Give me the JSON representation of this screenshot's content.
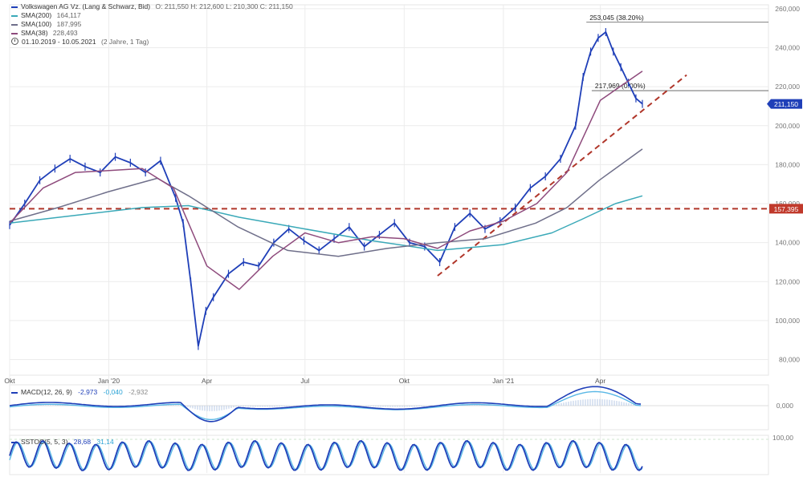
{
  "legend": {
    "title": "Volkswagen AG Vz. (Lang & Schwarz, Bid)",
    "ohlc": "O: 211,550  H: 212,600  L: 210,300  C: 211,150",
    "sma200_label": "SMA(200)",
    "sma200_value": "164,117",
    "sma100_label": "SMA(100)",
    "sma100_value": "187,995",
    "sma38_label": "SMA(38)",
    "sma38_value": "228,493",
    "range": "01.10.2019 - 10.05.2021",
    "range_note": "(2 Jahre, 1 Tag)"
  },
  "macd": {
    "label": "MACD(12, 26, 9)",
    "v1": "-2,973",
    "v2": "-0,040",
    "v3": "-2,932",
    "zero_label": "0,000"
  },
  "sstoc": {
    "label": "SSTOC(5, 5, 3)",
    "v1": "28,68",
    "v2": "31,14",
    "top_label": "100,00"
  },
  "colors": {
    "price": "#1f3fb8",
    "sma200": "#3aa9b8",
    "sma100": "#6f6f8a",
    "sma38": "#8e4a7c",
    "trend": "#b0362a",
    "last_price_bg": "#1f3fb8",
    "level_bg": "#c0392b",
    "macd": "#1f3fb8",
    "signal": "#5ab8e6",
    "stoch_k": "#1f3fb8",
    "stoch_d": "#5ab8e6"
  },
  "chart_data": {
    "type": "line",
    "y_axis": {
      "ticks": [
        80,
        100,
        120,
        140,
        160,
        180,
        200,
        220,
        240,
        260
      ],
      "tick_labels": [
        "80,000",
        "100,000",
        "120,000",
        "140,000",
        "160,000",
        "180,000",
        "200,000",
        "220,000",
        "240,000",
        "260,000"
      ],
      "ylim": [
        72,
        262
      ]
    },
    "x_axis": {
      "range": [
        "2019-10-01",
        "2021-05-10"
      ],
      "ticks": [
        {
          "date": "2019-10-01",
          "label": "Okt"
        },
        {
          "date": "2020-01-01",
          "label": "Jan '20"
        },
        {
          "date": "2020-04-01",
          "label": "Apr"
        },
        {
          "date": "2020-07-01",
          "label": "Jul"
        },
        {
          "date": "2020-10-01",
          "label": "Okt"
        },
        {
          "date": "2021-01-01",
          "label": "Jan '21"
        },
        {
          "date": "2021-04-01",
          "label": "Apr"
        }
      ]
    },
    "series": [
      {
        "name": "Volkswagen AG Vz.",
        "points": [
          [
            "2019-10-01",
            149
          ],
          [
            "2019-10-15",
            160
          ],
          [
            "2019-10-29",
            172
          ],
          [
            "2019-11-12",
            178
          ],
          [
            "2019-11-26",
            183
          ],
          [
            "2019-12-10",
            179
          ],
          [
            "2019-12-24",
            176
          ],
          [
            "2020-01-07",
            184
          ],
          [
            "2020-01-21",
            181
          ],
          [
            "2020-02-04",
            176
          ],
          [
            "2020-02-18",
            182
          ],
          [
            "2020-03-03",
            163
          ],
          [
            "2020-03-10",
            150
          ],
          [
            "2020-03-17",
            120
          ],
          [
            "2020-03-24",
            87
          ],
          [
            "2020-03-31",
            105
          ],
          [
            "2020-04-07",
            112
          ],
          [
            "2020-04-21",
            124
          ],
          [
            "2020-05-05",
            130
          ],
          [
            "2020-05-19",
            128
          ],
          [
            "2020-06-02",
            140
          ],
          [
            "2020-06-16",
            147
          ],
          [
            "2020-06-30",
            141
          ],
          [
            "2020-07-14",
            136
          ],
          [
            "2020-07-28",
            142
          ],
          [
            "2020-08-11",
            148
          ],
          [
            "2020-08-25",
            138
          ],
          [
            "2020-09-08",
            144
          ],
          [
            "2020-09-22",
            150
          ],
          [
            "2020-10-06",
            140
          ],
          [
            "2020-10-20",
            138
          ],
          [
            "2020-11-03",
            130
          ],
          [
            "2020-11-17",
            148
          ],
          [
            "2020-12-01",
            155
          ],
          [
            "2020-12-15",
            147
          ],
          [
            "2020-12-29",
            151
          ],
          [
            "2021-01-12",
            158
          ],
          [
            "2021-01-26",
            168
          ],
          [
            "2021-02-09",
            174
          ],
          [
            "2021-02-23",
            183
          ],
          [
            "2021-03-09",
            200
          ],
          [
            "2021-03-16",
            225
          ],
          [
            "2021-03-23",
            238
          ],
          [
            "2021-03-30",
            245
          ],
          [
            "2021-04-06",
            248
          ],
          [
            "2021-04-13",
            238
          ],
          [
            "2021-04-20",
            230
          ],
          [
            "2021-04-27",
            222
          ],
          [
            "2021-05-04",
            214
          ],
          [
            "2021-05-10",
            211.15
          ]
        ]
      },
      {
        "name": "SMA(200)",
        "points": [
          [
            "2019-10-01",
            150
          ],
          [
            "2019-12-01",
            154
          ],
          [
            "2020-02-01",
            158
          ],
          [
            "2020-03-15",
            159
          ],
          [
            "2020-05-01",
            153
          ],
          [
            "2020-07-01",
            147
          ],
          [
            "2020-09-01",
            141
          ],
          [
            "2020-11-01",
            136
          ],
          [
            "2021-01-01",
            139
          ],
          [
            "2021-02-15",
            145
          ],
          [
            "2021-03-15",
            152
          ],
          [
            "2021-04-15",
            160
          ],
          [
            "2021-05-10",
            164
          ]
        ]
      },
      {
        "name": "SMA(100)",
        "points": [
          [
            "2019-10-01",
            151
          ],
          [
            "2019-11-15",
            158
          ],
          [
            "2019-12-31",
            166
          ],
          [
            "2020-02-15",
            173
          ],
          [
            "2020-03-15",
            164
          ],
          [
            "2020-04-30",
            148
          ],
          [
            "2020-06-15",
            136
          ],
          [
            "2020-08-01",
            133
          ],
          [
            "2020-09-15",
            137
          ],
          [
            "2020-11-01",
            140
          ],
          [
            "2020-12-15",
            142
          ],
          [
            "2021-01-31",
            150
          ],
          [
            "2021-03-01",
            158
          ],
          [
            "2021-03-31",
            172
          ],
          [
            "2021-05-10",
            188
          ]
        ]
      },
      {
        "name": "SMA(38)",
        "points": [
          [
            "2019-10-01",
            150
          ],
          [
            "2019-11-01",
            168
          ],
          [
            "2019-12-01",
            176
          ],
          [
            "2020-01-01",
            177
          ],
          [
            "2020-02-01",
            178
          ],
          [
            "2020-03-01",
            168
          ],
          [
            "2020-04-01",
            128
          ],
          [
            "2020-05-01",
            116
          ],
          [
            "2020-06-01",
            133
          ],
          [
            "2020-07-01",
            145
          ],
          [
            "2020-08-01",
            140
          ],
          [
            "2020-09-01",
            143
          ],
          [
            "2020-10-01",
            142
          ],
          [
            "2020-11-01",
            137
          ],
          [
            "2020-12-01",
            146
          ],
          [
            "2021-01-01",
            151
          ],
          [
            "2021-02-01",
            160
          ],
          [
            "2021-03-01",
            176
          ],
          [
            "2021-04-01",
            213
          ],
          [
            "2021-05-10",
            228
          ]
        ]
      }
    ],
    "annotations": [
      {
        "type": "hline",
        "value": 253.045,
        "label": "253,045 (38.20%)",
        "from": "2021-03-19"
      },
      {
        "type": "hline",
        "value": 217.969,
        "label": "217,969 (0.00%)",
        "from": "2021-03-24"
      },
      {
        "type": "hline",
        "value": 157.395,
        "label": "157,395",
        "style": "dashed"
      },
      {
        "type": "trendline",
        "from": [
          "2020-11-01",
          123
        ],
        "to": [
          "2021-06-20",
          226
        ],
        "style": "dashed"
      }
    ],
    "last_price": {
      "value": 211.15,
      "label": "211,150"
    }
  }
}
